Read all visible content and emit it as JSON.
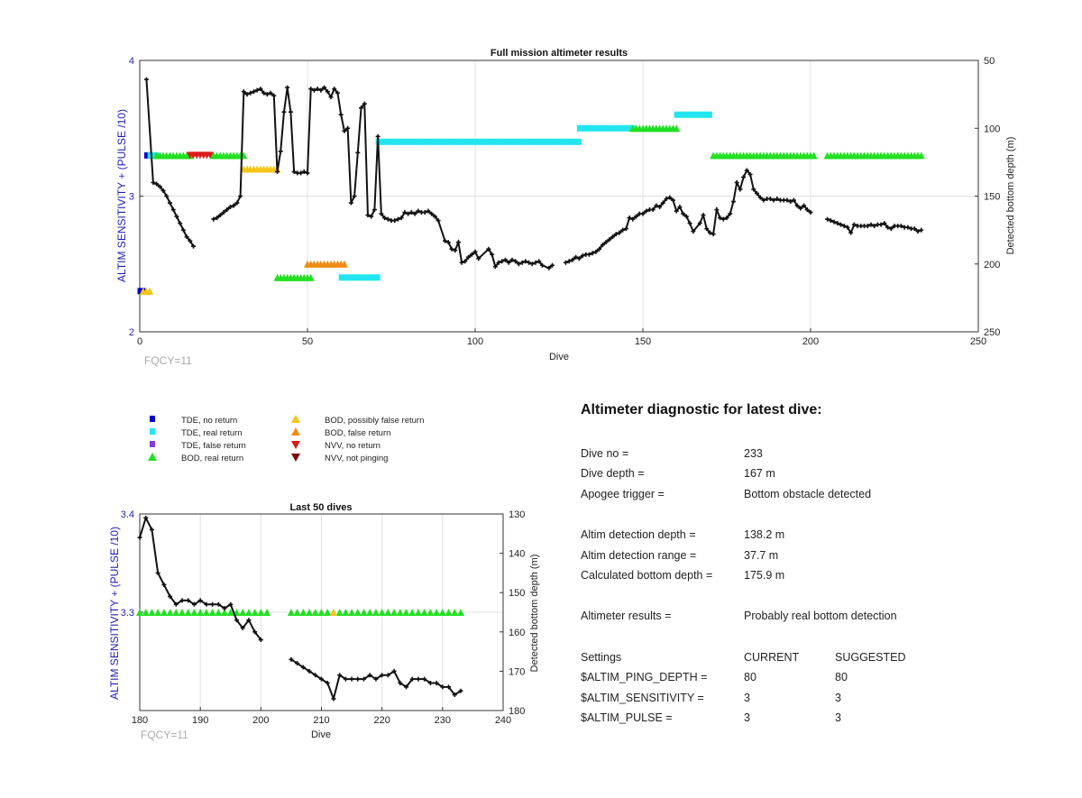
{
  "chart_data": [
    {
      "type": "scatter",
      "title": "Full mission altimeter results",
      "xlabel": "Dive",
      "ylabel_left": "ALTIM SENSITIVITY + (PULSE /10)",
      "ylabel_right": "Detected bottom depth (m)",
      "xlim": [
        0,
        250
      ],
      "ylim_left": [
        2,
        4
      ],
      "ylim_right": [
        50,
        250
      ],
      "right_axis_reversed": true,
      "x_ticks": [
        "0",
        "50",
        "100",
        "150",
        "200",
        "250"
      ],
      "y_left_ticks": [
        "2",
        "3",
        "4"
      ],
      "y_right_ticks": [
        "50",
        "100",
        "150",
        "200",
        "250"
      ],
      "grid": true,
      "annotation": "FQCY=11",
      "depth_series": {
        "name": "Detected bottom depth",
        "points": [
          [
            2,
            64
          ],
          [
            4,
            140
          ],
          [
            5,
            141
          ],
          [
            6,
            143
          ],
          [
            7,
            146
          ],
          [
            8,
            150
          ],
          [
            9,
            155
          ],
          [
            10,
            160
          ],
          [
            11,
            165
          ],
          [
            12,
            170
          ],
          [
            13,
            175
          ],
          [
            14,
            180
          ],
          [
            15,
            183
          ],
          [
            16,
            187
          ],
          [
            22,
            167
          ],
          [
            23,
            166
          ],
          [
            24,
            164
          ],
          [
            25,
            162
          ],
          [
            26,
            160
          ],
          [
            27,
            158
          ],
          [
            28,
            157
          ],
          [
            29,
            155
          ],
          [
            30,
            150
          ],
          [
            31,
            73
          ],
          [
            32,
            75
          ],
          [
            33,
            74
          ],
          [
            34,
            73
          ],
          [
            35,
            72
          ],
          [
            36,
            71
          ],
          [
            37,
            74
          ],
          [
            38,
            75
          ],
          [
            39,
            74
          ],
          [
            40,
            76
          ],
          [
            41,
            132
          ],
          [
            42,
            117
          ],
          [
            43,
            88
          ],
          [
            44,
            70
          ],
          [
            45,
            88
          ],
          [
            46,
            132
          ],
          [
            47,
            133
          ],
          [
            48,
            133
          ],
          [
            49,
            132
          ],
          [
            50,
            133
          ],
          [
            51,
            71
          ],
          [
            52,
            72
          ],
          [
            53,
            71
          ],
          [
            54,
            72
          ],
          [
            55,
            70
          ],
          [
            56,
            73
          ],
          [
            57,
            77
          ],
          [
            58,
            71
          ],
          [
            59,
            74
          ],
          [
            60,
            90
          ],
          [
            61,
            102
          ],
          [
            62,
            100
          ],
          [
            63,
            155
          ],
          [
            64,
            150
          ],
          [
            65,
            118
          ],
          [
            66,
            85
          ],
          [
            67,
            82
          ],
          [
            68,
            164
          ],
          [
            69,
            165
          ],
          [
            70,
            160
          ],
          [
            71,
            106
          ],
          [
            72,
            163
          ],
          [
            73,
            166
          ],
          [
            74,
            167
          ],
          [
            75,
            168
          ],
          [
            76,
            168
          ],
          [
            77,
            167
          ],
          [
            78,
            166
          ],
          [
            79,
            162
          ],
          [
            80,
            163
          ],
          [
            81,
            162
          ],
          [
            82,
            163
          ],
          [
            83,
            161
          ],
          [
            84,
            162
          ],
          [
            85,
            162
          ],
          [
            86,
            161
          ],
          [
            87,
            163
          ],
          [
            88,
            165
          ],
          [
            89,
            168
          ],
          [
            91,
            183
          ],
          [
            92,
            184
          ],
          [
            93,
            189
          ],
          [
            94,
            190
          ],
          [
            95,
            184
          ],
          [
            96,
            199
          ],
          [
            97,
            198
          ],
          [
            98,
            195
          ],
          [
            99,
            193
          ],
          [
            100,
            191
          ],
          [
            101,
            196
          ],
          [
            104,
            189
          ],
          [
            105,
            193
          ],
          [
            106,
            202
          ],
          [
            107,
            199
          ],
          [
            108,
            198
          ],
          [
            109,
            197
          ],
          [
            110,
            199
          ],
          [
            111,
            197
          ],
          [
            112,
            198
          ],
          [
            113,
            200
          ],
          [
            114,
            199
          ],
          [
            115,
            198
          ],
          [
            116,
            199
          ],
          [
            117,
            200
          ],
          [
            118,
            199
          ],
          [
            119,
            198
          ],
          [
            120,
            201
          ],
          [
            122,
            203
          ],
          [
            123,
            201
          ],
          [
            127,
            199
          ],
          [
            128,
            198
          ],
          [
            129,
            197
          ],
          [
            130,
            195
          ],
          [
            131,
            196
          ],
          [
            132,
            194
          ],
          [
            133,
            193
          ],
          [
            134,
            193
          ],
          [
            135,
            192
          ],
          [
            136,
            191
          ],
          [
            137,
            189
          ],
          [
            138,
            186
          ],
          [
            139,
            184
          ],
          [
            140,
            182
          ],
          [
            141,
            180
          ],
          [
            142,
            178
          ],
          [
            143,
            177
          ],
          [
            144,
            175
          ],
          [
            145,
            174
          ],
          [
            146,
            166
          ],
          [
            147,
            167
          ],
          [
            148,
            165
          ],
          [
            149,
            163
          ],
          [
            150,
            163
          ],
          [
            151,
            161
          ],
          [
            152,
            160
          ],
          [
            153,
            160
          ],
          [
            154,
            157
          ],
          [
            155,
            158
          ],
          [
            156,
            155
          ],
          [
            157,
            152
          ],
          [
            158,
            151
          ],
          [
            159,
            153
          ],
          [
            160,
            161
          ],
          [
            161,
            158
          ],
          [
            162,
            163
          ],
          [
            163,
            165
          ],
          [
            164,
            170
          ],
          [
            165,
            176
          ],
          [
            167,
            170
          ],
          [
            168,
            164
          ],
          [
            169,
            174
          ],
          [
            170,
            177
          ],
          [
            171,
            178
          ],
          [
            172,
            160
          ],
          [
            173,
            166
          ],
          [
            174,
            167
          ],
          [
            175,
            166
          ],
          [
            176,
            163
          ],
          [
            177,
            154
          ],
          [
            178,
            140
          ],
          [
            179,
            145
          ],
          [
            180,
            136
          ],
          [
            181,
            131
          ],
          [
            182,
            134
          ],
          [
            183,
            145
          ],
          [
            184,
            148
          ],
          [
            185,
            151
          ],
          [
            186,
            153
          ],
          [
            187,
            152
          ],
          [
            188,
            152
          ],
          [
            189,
            153
          ],
          [
            190,
            152
          ],
          [
            191,
            153
          ],
          [
            192,
            153
          ],
          [
            193,
            153
          ],
          [
            194,
            154
          ],
          [
            195,
            153
          ],
          [
            196,
            157
          ],
          [
            197,
            159
          ],
          [
            198,
            157
          ],
          [
            199,
            160
          ],
          [
            200,
            162
          ],
          [
            205,
            167
          ],
          [
            206,
            168
          ],
          [
            207,
            169
          ],
          [
            208,
            170
          ],
          [
            209,
            171
          ],
          [
            210,
            172
          ],
          [
            211,
            173
          ],
          [
            212,
            177
          ],
          [
            213,
            171
          ],
          [
            214,
            172
          ],
          [
            215,
            172
          ],
          [
            216,
            172
          ],
          [
            217,
            172
          ],
          [
            218,
            171
          ],
          [
            219,
            172
          ],
          [
            220,
            171
          ],
          [
            221,
            171
          ],
          [
            222,
            170
          ],
          [
            223,
            173
          ],
          [
            224,
            174
          ],
          [
            225,
            172
          ],
          [
            226,
            172
          ],
          [
            227,
            172
          ],
          [
            228,
            173
          ],
          [
            229,
            173
          ],
          [
            230,
            174
          ],
          [
            231,
            174
          ],
          [
            232,
            176
          ],
          [
            233,
            175
          ]
        ]
      },
      "markers": [
        {
          "type": "tde-no-return",
          "x_from": 2,
          "x_to": 3,
          "y": 3.3
        },
        {
          "type": "tde-real-return",
          "x_from": 3,
          "x_to": 5,
          "y": 3.3
        },
        {
          "type": "bod-real-return",
          "x_from": 5,
          "x_to": 15,
          "y": 3.3
        },
        {
          "type": "nvv-no-return",
          "x_from": 15,
          "x_to": 21,
          "y": 3.3
        },
        {
          "type": "bod-real-return",
          "x_from": 22,
          "x_to": 31,
          "y": 3.3
        },
        {
          "type": "bod-possibly-false",
          "x_from": 31,
          "x_to": 41,
          "y": 3.2
        },
        {
          "type": "tde-real-return",
          "x_from": 71,
          "x_to": 131,
          "y": 3.4
        },
        {
          "type": "tde-real-return",
          "x_from": 131,
          "x_to": 147,
          "y": 3.5
        },
        {
          "type": "bod-real-return",
          "x_from": 147,
          "x_to": 160,
          "y": 3.5
        },
        {
          "type": "tde-real-return",
          "x_from": 160,
          "x_to": 170,
          "y": 3.6
        },
        {
          "type": "bod-real-return",
          "x_from": 171,
          "x_to": 201,
          "y": 3.3
        },
        {
          "type": "bod-real-return",
          "x_from": 205,
          "x_to": 233,
          "y": 3.3
        },
        {
          "type": "bod-real-return",
          "x_from": 41,
          "x_to": 51,
          "y": 2.4
        },
        {
          "type": "bod-false-return",
          "x_from": 50,
          "x_to": 61,
          "y": 2.5
        },
        {
          "type": "tde-real-return",
          "x_from": 60,
          "x_to": 71,
          "y": 2.4
        },
        {
          "type": "tde-no-return",
          "x_from": 0,
          "x_to": 1,
          "y": 2.3
        },
        {
          "type": "bod-possibly-false",
          "x_from": 1,
          "x_to": 3,
          "y": 2.3
        }
      ]
    },
    {
      "type": "scatter",
      "title": "Last 50 dives",
      "xlabel": "Dive",
      "ylabel_left": "ALTIM SENSITIVITY + (PULSE /10)",
      "ylabel_right": "Detected bottom depth (m)",
      "xlim": [
        180,
        240
      ],
      "ylim_left": [
        3.2,
        3.4
      ],
      "ylim_right": [
        130,
        180
      ],
      "right_axis_reversed": true,
      "x_ticks": [
        "180",
        "190",
        "200",
        "210",
        "220",
        "230",
        "240"
      ],
      "y_left_ticks": [
        "3.3",
        "3.4"
      ],
      "y_right_ticks": [
        "130",
        "140",
        "150",
        "160",
        "170",
        "180"
      ],
      "grid": true,
      "annotation": "FQCY=11",
      "markers": [
        {
          "type": "bod-real-return",
          "x_from": 180,
          "x_to": 201,
          "y": 3.3
        },
        {
          "type": "bod-real-return",
          "x_from": 205,
          "x_to": 233,
          "y": 3.3
        },
        {
          "type": "bod-possibly-false",
          "x_from": 212,
          "x_to": 212,
          "y": 3.3
        }
      ]
    }
  ],
  "legend": [
    {
      "symbol": "square",
      "color": "#0000cc",
      "label": "TDE, no return"
    },
    {
      "symbol": "square",
      "color": "#22e5f0",
      "label": "TDE, real return"
    },
    {
      "symbol": "square",
      "color": "#7f3fd4",
      "label": "TDE, false return"
    },
    {
      "symbol": "triangle-up",
      "color": "#22e022",
      "label": "BOD, real return"
    },
    {
      "symbol": "triangle-up",
      "color": "#f5c518",
      "label": "BOD, possibly false return"
    },
    {
      "symbol": "triangle-up",
      "color": "#f08c14",
      "label": "BOD, false return"
    },
    {
      "symbol": "triangle-down",
      "color": "#dd1a1a",
      "label": "NVV, no return"
    },
    {
      "symbol": "triangle-down",
      "color": "#7a0a0a",
      "label": "NVV, not pinging"
    }
  ],
  "diagnostic": {
    "title": "Altimeter diagnostic for latest dive:",
    "rows": [
      {
        "label": "Dive no =",
        "value": "233"
      },
      {
        "label": "Dive depth =",
        "value": "167 m"
      },
      {
        "label": "Apogee trigger =",
        "value": "Bottom obstacle detected"
      },
      {
        "label": "Altim detection depth =",
        "value": "138.2 m"
      },
      {
        "label": "Altim detection range =",
        "value": "37.7 m"
      },
      {
        "label": "Calculated bottom depth =",
        "value": "175.9 m"
      },
      {
        "label": "Altimeter results =",
        "value": "Probably real bottom detection"
      }
    ],
    "settings_header": {
      "label": "Settings",
      "current": "CURRENT",
      "suggested": "SUGGESTED"
    },
    "settings": [
      {
        "label": "$ALTIM_PING_DEPTH =",
        "current": "80",
        "suggested": "80"
      },
      {
        "label": "$ALTIM_SENSITIVITY =",
        "current": "3",
        "suggested": "3"
      },
      {
        "label": "$ALTIM_PULSE =",
        "current": "3",
        "suggested": "3"
      }
    ]
  }
}
